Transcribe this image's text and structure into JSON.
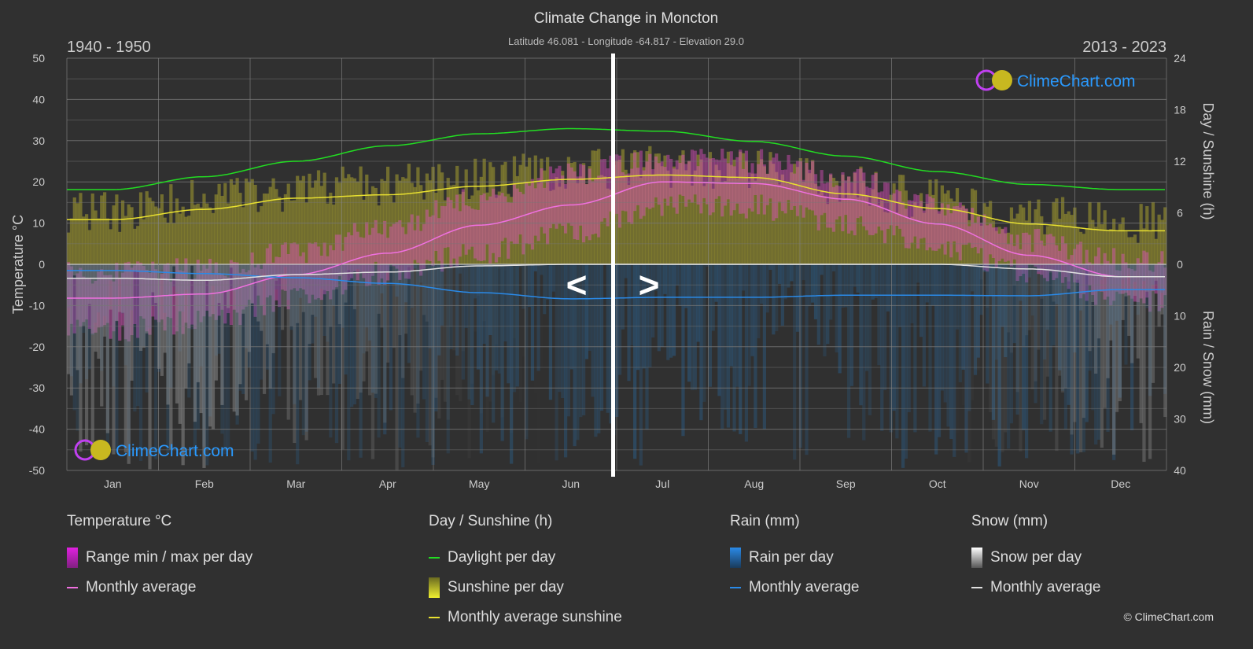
{
  "header": {
    "title": "Climate Change in Moncton",
    "subtitle": "Latitude 46.081 - Longitude -64.817 - Elevation 29.0",
    "period_left": "1940 - 1950",
    "period_right": "2013 - 2023",
    "nav_prev": "<",
    "nav_next": ">"
  },
  "logo_text": "ClimeChart.com",
  "copyright": "© ClimeChart.com",
  "chart_data": {
    "type": "area",
    "categories": [
      "Jan",
      "Feb",
      "Mar",
      "Apr",
      "May",
      "Jun",
      "Jul",
      "Aug",
      "Sep",
      "Oct",
      "Nov",
      "Dec"
    ],
    "y_left": {
      "label": "Temperature °C",
      "range": [
        -50,
        50
      ],
      "ticks": [
        50,
        40,
        30,
        20,
        10,
        0,
        -10,
        -20,
        -30,
        -40,
        -50
      ]
    },
    "y_right_top": {
      "label": "Day / Sunshine (h)",
      "range": [
        0,
        24
      ],
      "ticks": [
        24,
        18,
        12,
        6,
        0
      ]
    },
    "y_right_bottom": {
      "label": "Rain / Snow (mm)",
      "range": [
        0,
        40
      ],
      "ticks": [
        10,
        20,
        30,
        40
      ]
    },
    "grid": true,
    "series": [
      {
        "name": "Daylight per day",
        "axis": "hours",
        "color": "#22dd22",
        "values": [
          8.7,
          10.2,
          12.0,
          13.8,
          15.2,
          15.8,
          15.5,
          14.3,
          12.6,
          10.8,
          9.3,
          8.7
        ]
      },
      {
        "name": "Monthly average sunshine",
        "axis": "hours",
        "color": "#e8e030",
        "values": [
          5.2,
          6.4,
          7.7,
          8.1,
          9.1,
          9.9,
          10.4,
          10.1,
          8.2,
          6.5,
          4.7,
          3.9
        ]
      },
      {
        "name": "Monthly average",
        "group": "Temperature °C",
        "axis": "temperature",
        "color": "#f070e0",
        "values": [
          -8.2,
          -7.2,
          -2.5,
          2.7,
          9.5,
          14.4,
          20.0,
          19.6,
          15.8,
          9.8,
          2.2,
          -3.0
        ]
      },
      {
        "name": "Range min / max per day",
        "axis": "temperature",
        "color": "#e040c0",
        "max": [
          -2,
          -1,
          3,
          9,
          16,
          22,
          26,
          25,
          21,
          14,
          6,
          1
        ],
        "min": [
          -16,
          -14,
          -8,
          -2,
          3,
          8,
          14,
          14,
          10,
          4,
          -2,
          -9
        ]
      },
      {
        "name": "Monthly average",
        "group": "Rain (mm)",
        "axis": "precip",
        "color": "#2a8ae8",
        "values": [
          1.2,
          1.8,
          2.6,
          3.7,
          5.5,
          6.7,
          6.4,
          6.4,
          6.0,
          6.0,
          6.1,
          4.9
        ]
      },
      {
        "name": "Monthly average",
        "group": "Snow (mm)",
        "axis": "precip",
        "color": "#e0e0e0",
        "values": [
          2.7,
          3.1,
          2.0,
          1.5,
          0.3,
          0,
          0,
          0,
          0,
          0,
          0.9,
          2.4
        ]
      }
    ]
  },
  "legend": {
    "temperature": {
      "title": "Temperature °C",
      "items": [
        "Range min / max per day",
        "Monthly average"
      ]
    },
    "sunshine": {
      "title": "Day / Sunshine (h)",
      "items": [
        "Daylight per day",
        "Sunshine per day",
        "Monthly average sunshine"
      ]
    },
    "rain": {
      "title": "Rain (mm)",
      "items": [
        "Rain per day",
        "Monthly average"
      ]
    },
    "snow": {
      "title": "Snow (mm)",
      "items": [
        "Snow per day",
        "Monthly average"
      ]
    }
  }
}
